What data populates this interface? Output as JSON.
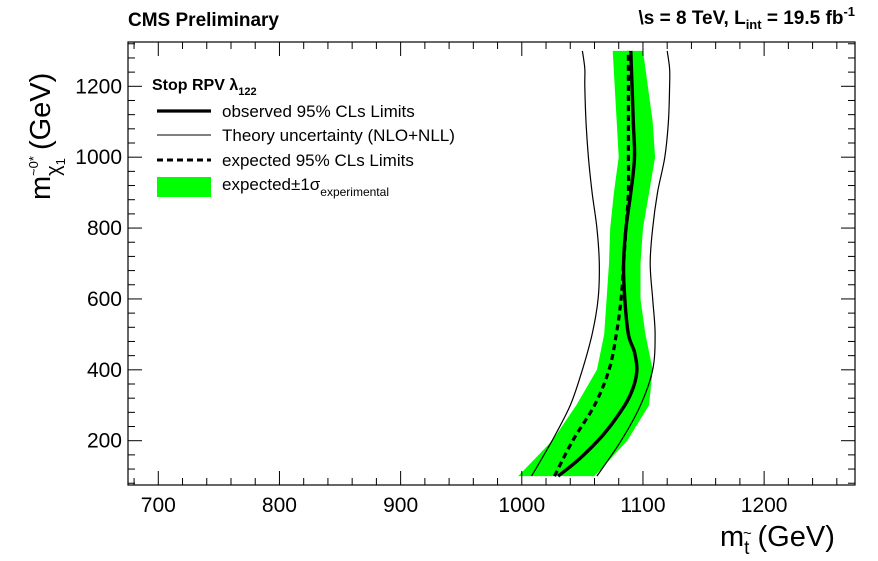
{
  "header": {
    "left": "CMS Preliminary",
    "right_prefix": "\\s = 8 TeV, L",
    "right_sub": "int",
    "right_mid": " = 19.5 fb",
    "right_sup": "-1"
  },
  "chart_data": {
    "type": "line",
    "xlabel": "m",
    "xlabel_sub": "t",
    "xlabel_accent": "~",
    "xlabel_unit": " (GeV)",
    "ylabel": "m",
    "ylabel_sub": "χ",
    "ylabel_sub_idx": "1",
    "ylabel_sup": "~0*",
    "ylabel_unit": " (GeV)",
    "xlim": [
      675,
      1275
    ],
    "ylim": [
      75,
      1325
    ],
    "xticks": [
      "700",
      "800",
      "900",
      "1000",
      "1100",
      "1200"
    ],
    "yticks": [
      "200",
      "400",
      "600",
      "800",
      "1000",
      "1200"
    ],
    "legend": {
      "title": "Stop RPV λ",
      "title_sub": "122",
      "placement": "top-left",
      "entries": [
        {
          "label": "observed 95% CLs Limits",
          "style": "thick-solid"
        },
        {
          "label": "Theory uncertainty (NLO+NLL)",
          "style": "thin-solid"
        },
        {
          "label": "expected 95% CLs Limits",
          "style": "dashed"
        },
        {
          "label": "expected±1σ",
          "label_sub": "experimental",
          "style": "green-band"
        }
      ]
    },
    "series": {
      "observed": {
        "x": [
          1030,
          1048,
          1068,
          1085,
          1092,
          1095,
          1093,
          1088,
          1085,
          1084,
          1086,
          1090,
          1093,
          1092,
          1090
        ],
        "y": [
          100,
          150,
          220,
          300,
          350,
          400,
          450,
          500,
          600,
          700,
          800,
          900,
          1000,
          1100,
          1300
        ]
      },
      "theory_left": {
        "x": [
          1008,
          1025,
          1040,
          1050,
          1058,
          1063,
          1064,
          1062,
          1058,
          1055,
          1053,
          1052,
          1052,
          1050
        ],
        "y": [
          100,
          200,
          300,
          400,
          500,
          600,
          700,
          800,
          900,
          1000,
          1100,
          1200,
          1250,
          1300
        ]
      },
      "theory_right": {
        "x": [
          1062,
          1082,
          1098,
          1108,
          1110,
          1108,
          1106,
          1108,
          1112,
          1118,
          1121,
          1122,
          1122,
          1120
        ],
        "y": [
          100,
          200,
          300,
          400,
          500,
          600,
          700,
          800,
          900,
          1000,
          1100,
          1200,
          1250,
          1300
        ]
      },
      "expected": {
        "x": [
          1027,
          1042,
          1060,
          1072,
          1078,
          1082,
          1084,
          1086,
          1088,
          1088,
          1088,
          1088
        ],
        "y": [
          100,
          200,
          300,
          400,
          500,
          600,
          700,
          800,
          900,
          1000,
          1100,
          1300
        ]
      },
      "band_left": {
        "x": [
          997,
          1025,
          1045,
          1062,
          1068,
          1070,
          1072,
          1073,
          1076,
          1080,
          1075
        ],
        "y": [
          100,
          200,
          300,
          400,
          500,
          600,
          700,
          800,
          900,
          1000,
          1300
        ]
      },
      "band_right": {
        "x": [
          1060,
          1087,
          1105,
          1108,
          1102,
          1098,
          1098,
          1100,
          1110,
          1108,
          1100
        ],
        "y": [
          100,
          200,
          300,
          400,
          500,
          600,
          700,
          800,
          1000,
          1100,
          1300
        ]
      }
    },
    "colors": {
      "band": "#00ff00",
      "line": "#000000"
    },
    "grid": false
  }
}
